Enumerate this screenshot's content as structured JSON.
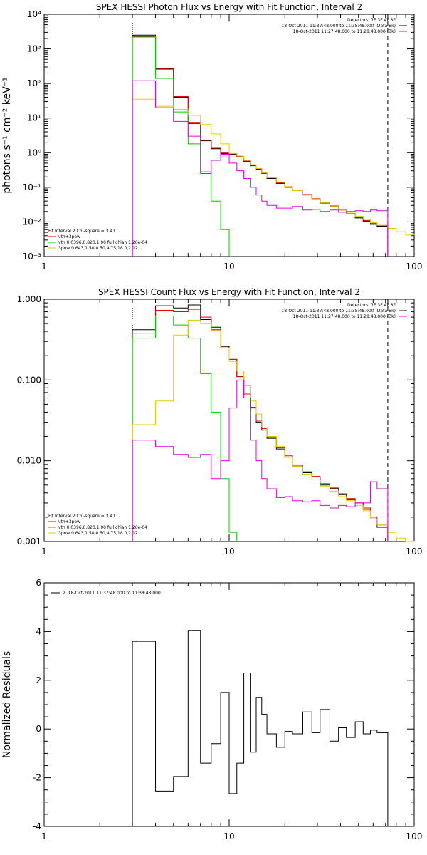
{
  "chart_data": [
    {
      "type": "line",
      "title": "SPEX HESSI Photon Flux vs Energy with Fit Function, Interval 2",
      "xlabel": "",
      "ylabel": "photons s⁻¹ cm⁻² keV⁻¹",
      "xscale": "log",
      "yscale": "log",
      "xlim": [
        1,
        100
      ],
      "ylim": [
        0.001,
        10000
      ],
      "x_ticks": [
        1,
        10,
        100
      ],
      "x_tick_labels": [
        "1",
        "10",
        "100"
      ],
      "y_ticks": [
        0.001,
        0.01,
        0.1,
        1,
        10,
        100,
        1000,
        10000
      ],
      "y_tick_labels": [
        "10⁻³",
        "10⁻²",
        "10⁻¹",
        "10⁰",
        "10¹",
        "10²",
        "10³",
        "10⁴"
      ],
      "vlines": [
        {
          "x": 3,
          "style": "dotted"
        },
        {
          "x": 72,
          "style": "dashed"
        }
      ],
      "legend_top": [
        "Detectors: 1F 3F 4F 8F",
        "18-Oct-2011 11:37:48.000 to 11:38:48.000 (Data-Bk)",
        "18-Oct-2011 11:27:48.000 to 11:28:48.000 (Bk)"
      ],
      "legend_bottom": [
        "Fit Interval  2    Chi-square = 3.41",
        "vth+3pow",
        "vth 0.0396,0.820,1.00  full chian 1.26e-04",
        "3pow 0.643,1.50,8.50,4.75,18.0,2.12"
      ],
      "legend_position": "bottom-left",
      "edges": [
        3,
        4,
        5,
        6,
        7,
        8,
        9,
        10,
        11,
        12,
        13,
        14,
        15,
        16,
        18,
        20,
        22,
        25,
        28,
        31,
        35,
        39,
        43,
        48,
        53,
        58,
        63,
        72,
        80,
        90,
        100
      ],
      "series": [
        {
          "color": "#000000",
          "values": [
            2500,
            260,
            40,
            7,
            2.2,
            1.3,
            0.95,
            0.9,
            0.75,
            0.55,
            0.42,
            0.33,
            0.25,
            0.18,
            0.13,
            0.1,
            0.08,
            0.06,
            0.045,
            0.035,
            0.028,
            0.022,
            0.017,
            0.013,
            0.0105,
            0.0085,
            0.0075,
            null,
            null,
            null
          ]
        },
        {
          "color": "#e00000",
          "values": [
            2300,
            270,
            42,
            7.5,
            2.3,
            1.35,
            1.0,
            0.92,
            0.77,
            0.57,
            0.43,
            0.34,
            0.26,
            0.19,
            0.135,
            0.105,
            0.082,
            0.062,
            0.047,
            0.036,
            0.029,
            0.023,
            0.018,
            0.0135,
            0.011,
            0.009,
            0.0078,
            null,
            null,
            null
          ]
        },
        {
          "color": "#00c800",
          "values": [
            2200,
            140,
            15,
            1.8,
            0.28,
            0.04,
            0.006,
            null,
            null,
            null,
            null,
            null,
            null,
            null,
            null,
            null,
            null,
            null,
            null,
            null,
            null,
            null,
            null,
            null,
            null,
            null,
            null,
            null,
            null,
            null
          ]
        },
        {
          "color": "#e8c800",
          "values": [
            35,
            22,
            18,
            12,
            6.5,
            3.5,
            1.8,
            0.95,
            0.8,
            0.6,
            0.45,
            0.35,
            0.26,
            0.19,
            0.14,
            0.105,
            0.08,
            0.06,
            0.046,
            0.036,
            0.028,
            0.022,
            0.018,
            0.0145,
            0.012,
            0.0095,
            0.008,
            0.0065,
            0.0052,
            0.0042
          ]
        },
        {
          "color": "#e000e0",
          "values": [
            120,
            20,
            8,
            3,
            0.25,
            0.6,
            0.9,
            0.5,
            0.3,
            0.18,
            0.1,
            0.06,
            0.04,
            0.03,
            0.025,
            0.025,
            0.028,
            0.022,
            0.023,
            0.02,
            0.022,
            0.019,
            0.02,
            0.021,
            0.02,
            0.022,
            0.021,
            null,
            null,
            null
          ]
        }
      ]
    },
    {
      "type": "line",
      "title": "SPEX HESSI Count Flux vs Energy with Fit Function, Interval 2",
      "xlabel": "",
      "ylabel": "",
      "xscale": "log",
      "yscale": "log",
      "xlim": [
        1,
        100
      ],
      "ylim": [
        0.001,
        1.0
      ],
      "x_ticks": [
        1,
        10,
        100
      ],
      "x_tick_labels": [
        "1",
        "10",
        "100"
      ],
      "y_ticks": [
        0.001,
        0.01,
        0.1,
        1.0
      ],
      "y_tick_labels": [
        "0.001",
        "0.010",
        "0.100",
        "1.000"
      ],
      "vlines": [
        {
          "x": 3,
          "style": "dotted"
        },
        {
          "x": 72,
          "style": "dashed"
        }
      ],
      "legend_top": [
        "Detectors: 1F 3F 4F 8F",
        "18-Oct-2011 11:37:48.000 to 11:38:48.000 (Data-Bk)",
        "18-Oct-2011 11:27:48.000 to 11:28:48.000 (Bk)"
      ],
      "legend_bottom": [
        "Fit Interval  2    Chi-square = 3.41",
        "vth+3pow",
        "vth 0.0396,0.820,1.00  full chian 1.26e-04",
        "3pow 0.643,1.50,8.50,4.75,18.0,2.12"
      ],
      "legend_position": "bottom-left",
      "edges": [
        3,
        4,
        5,
        6,
        7,
        8,
        9,
        10,
        11,
        12,
        13,
        14,
        15,
        16,
        18,
        20,
        22,
        25,
        28,
        31,
        35,
        39,
        43,
        48,
        53,
        58,
        63,
        72,
        80,
        90,
        100
      ],
      "series": [
        {
          "color": "#000000",
          "values": [
            0.42,
            0.83,
            0.78,
            0.85,
            0.56,
            0.45,
            0.26,
            0.18,
            0.11,
            0.065,
            0.045,
            0.03,
            0.024,
            0.019,
            0.014,
            0.011,
            0.0085,
            0.0071,
            0.0063,
            0.005,
            0.0045,
            0.0038,
            0.0033,
            0.003,
            0.0025,
            0.0019,
            0.0015,
            null,
            null,
            null
          ]
        },
        {
          "color": "#e00000",
          "values": [
            0.38,
            0.73,
            0.7,
            0.75,
            0.6,
            0.42,
            0.25,
            0.18,
            0.11,
            0.067,
            0.046,
            0.031,
            0.025,
            0.0195,
            0.0145,
            0.0115,
            0.0088,
            0.0073,
            0.0064,
            0.0052,
            0.0046,
            0.0039,
            0.0034,
            0.003,
            0.0026,
            0.002,
            0.0016,
            null,
            null,
            null
          ]
        },
        {
          "color": "#00c800",
          "values": [
            0.33,
            0.62,
            0.48,
            0.33,
            0.12,
            0.04,
            0.006,
            0.0013,
            null,
            null,
            null,
            null,
            null,
            null,
            null,
            null,
            null,
            null,
            null,
            null,
            null,
            null,
            null,
            null,
            null,
            null,
            null,
            null,
            null,
            null
          ]
        },
        {
          "color": "#e8c800",
          "values": [
            0.028,
            0.055,
            0.36,
            0.55,
            0.5,
            0.41,
            0.25,
            0.17,
            0.13,
            0.085,
            0.055,
            0.038,
            0.026,
            0.02,
            0.015,
            0.011,
            0.0085,
            0.0068,
            0.0058,
            0.0048,
            0.0042,
            0.0036,
            0.0032,
            0.0028,
            0.0024,
            0.0019,
            0.0016,
            0.0013,
            0.0011,
            0.001
          ]
        },
        {
          "color": "#e000e0",
          "values": [
            0.018,
            0.015,
            0.012,
            0.011,
            0.012,
            0.006,
            0.01,
            0.045,
            0.1,
            0.06,
            0.018,
            0.01,
            0.006,
            0.0045,
            0.0035,
            0.0036,
            0.0032,
            0.0031,
            0.0032,
            0.0028,
            0.0026,
            0.0028,
            0.0027,
            0.003,
            0.003,
            0.0055,
            0.0045,
            null,
            null,
            null
          ]
        }
      ]
    },
    {
      "type": "line",
      "title": "",
      "xlabel": "",
      "ylabel": "Normalized Residuals",
      "xscale": "log",
      "yscale": "linear",
      "xlim": [
        1,
        100
      ],
      "ylim": [
        -4,
        6
      ],
      "x_ticks": [
        1,
        10,
        100
      ],
      "x_tick_labels": [
        "1",
        "10",
        "100"
      ],
      "y_ticks": [
        -4,
        -2,
        0,
        2,
        4,
        6
      ],
      "y_tick_labels": [
        "-4",
        "-2",
        "0",
        "2",
        "4",
        "6"
      ],
      "legend_top": [
        "2. 18-Oct-2011 11:37:48.000 to 11:38:48.000"
      ],
      "legend_position": "top-left",
      "edges": [
        3,
        4,
        5,
        6,
        7,
        8,
        9,
        10,
        11,
        12,
        13,
        14,
        15,
        16,
        18,
        20,
        22,
        25,
        28,
        31,
        35,
        39,
        43,
        48,
        53,
        58,
        63,
        72
      ],
      "series": [
        {
          "color": "#000000",
          "values": [
            3.6,
            -2.55,
            -1.95,
            4.05,
            -1.4,
            -0.6,
            1.5,
            -2.65,
            -1.4,
            2.3,
            -0.95,
            1.3,
            0.6,
            -0.2,
            -0.75,
            -0.1,
            -0.2,
            0.7,
            -0.15,
            0.8,
            -0.5,
            0.05,
            -0.35,
            0.3,
            -0.2,
            -0.05,
            -0.15
          ]
        }
      ]
    }
  ]
}
